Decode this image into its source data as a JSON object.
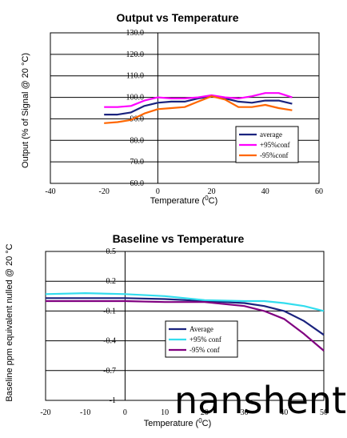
{
  "watermark": "nanshent",
  "chart_data": [
    {
      "type": "line",
      "title": "Output vs Temperature",
      "xlabel_main": "Temperature (",
      "xlabel_sup": "0",
      "xlabel_end": "C)",
      "ylabel": "Output (% of Signal @ 20 °C)",
      "xlim": [
        -40,
        60
      ],
      "ylim": [
        60,
        130
      ],
      "x_ticks": [
        "-40",
        "-20",
        "0",
        "20",
        "40",
        "60"
      ],
      "y_ticks": [
        "60.0",
        "70.0",
        "80.0",
        "90.0",
        "100.0",
        "110.0",
        "120.0",
        "130.0"
      ],
      "grid": "horizontal",
      "legend_position": "lower-right",
      "series": [
        {
          "name": "average",
          "color": "#1a237e",
          "x": [
            -20,
            -15,
            -10,
            -5,
            0,
            5,
            10,
            15,
            20,
            25,
            30,
            35,
            40,
            45,
            50
          ],
          "y": [
            92,
            92,
            93,
            96,
            97.5,
            98,
            98,
            99.5,
            100.5,
            99.5,
            98,
            97.5,
            98.5,
            98.5,
            97
          ]
        },
        {
          "name": "+95%conf",
          "color": "#ff00ff",
          "x": [
            -20,
            -15,
            -10,
            -5,
            0,
            5,
            10,
            15,
            20,
            25,
            30,
            35,
            40,
            45,
            50
          ],
          "y": [
            95.5,
            95.5,
            96,
            98.5,
            100,
            99.5,
            99.5,
            100,
            101,
            100,
            99.5,
            100.5,
            102,
            102,
            100
          ]
        },
        {
          "name": "-95%conf",
          "color": "#ff6600",
          "x": [
            -20,
            -15,
            -10,
            -5,
            0,
            5,
            10,
            15,
            20,
            25,
            30,
            35,
            40,
            45,
            50
          ],
          "y": [
            88,
            88.5,
            89.5,
            92.5,
            94.5,
            95,
            95.5,
            98,
            100.5,
            99,
            95.5,
            95.5,
            96.5,
            95,
            94
          ]
        }
      ]
    },
    {
      "type": "line",
      "title": "Baseline vs Temperature",
      "xlabel_main": "Temperature (",
      "xlabel_sup": "0",
      "xlabel_end": "C)",
      "ylabel": "Baseline ppm equivalent nulled @ 20 °C",
      "xlim": [
        -20,
        50
      ],
      "ylim": [
        -1,
        0.5
      ],
      "x_ticks": [
        "-20",
        "-10",
        "0",
        "10",
        "20",
        "30",
        "40",
        "50"
      ],
      "y_ticks": [
        "-1",
        "-0.7",
        "-0.4",
        "-0.1",
        "0.2",
        "0.5"
      ],
      "grid": "horizontal",
      "legend_position": "center-right",
      "series": [
        {
          "name": "Average",
          "color": "#1a237e",
          "x": [
            -20,
            -10,
            0,
            10,
            20,
            30,
            35,
            40,
            45,
            50
          ],
          "y": [
            0.03,
            0.03,
            0.03,
            0.02,
            0.0,
            -0.02,
            -0.05,
            -0.1,
            -0.2,
            -0.34
          ]
        },
        {
          "name": "+95% conf",
          "color": "#33ddee",
          "x": [
            -20,
            -10,
            0,
            10,
            20,
            30,
            35,
            40,
            45,
            50
          ],
          "y": [
            0.07,
            0.08,
            0.07,
            0.05,
            0.01,
            0.0,
            0.0,
            -0.02,
            -0.05,
            -0.1
          ]
        },
        {
          "name": "-95% conf",
          "color": "#800080",
          "x": [
            -20,
            -10,
            0,
            10,
            20,
            30,
            35,
            40,
            45,
            50
          ],
          "y": [
            0.0,
            0.0,
            0.0,
            -0.01,
            -0.01,
            -0.05,
            -0.1,
            -0.18,
            -0.33,
            -0.5
          ]
        }
      ]
    }
  ]
}
